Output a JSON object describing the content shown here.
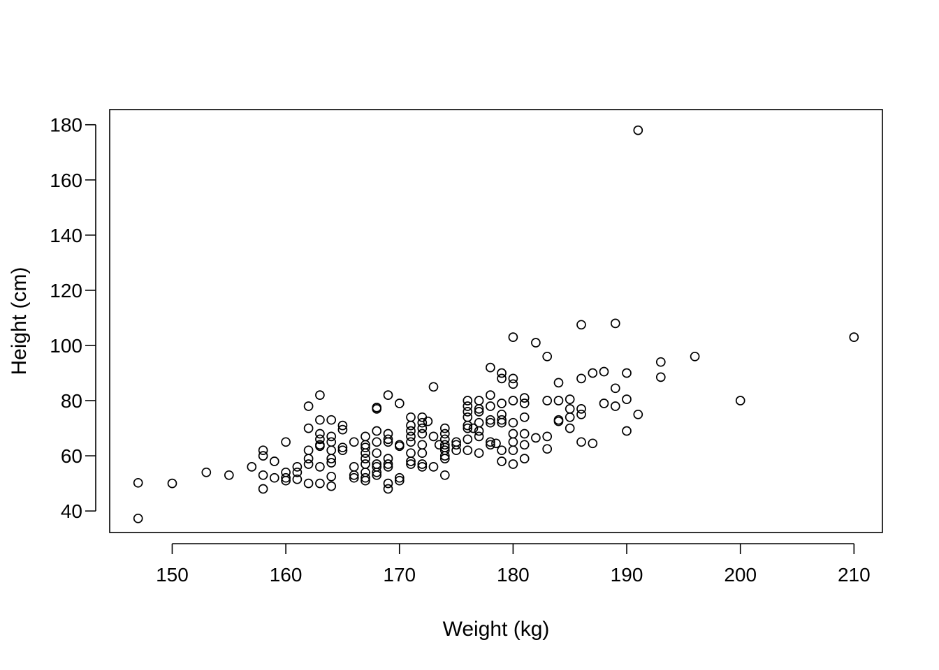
{
  "chart_data": {
    "type": "scatter",
    "title": "",
    "xlabel": "Weight (kg)",
    "ylabel": "Height (cm)",
    "xlim": [
      144.5,
      212.5
    ],
    "ylim": [
      32.2,
      185.5
    ],
    "xticks": [
      150,
      160,
      170,
      180,
      190,
      200,
      210
    ],
    "yticks": [
      40,
      60,
      80,
      100,
      120,
      140,
      160,
      180
    ],
    "grid": false,
    "legend": "none",
    "marker": "open-circle",
    "colors": {
      "points": "#000000",
      "axes": "#000000",
      "background": "#ffffff"
    },
    "points": [
      [
        147,
        50.2
      ],
      [
        147,
        37.3
      ],
      [
        150,
        50
      ],
      [
        153,
        54
      ],
      [
        155,
        53
      ],
      [
        157,
        56
      ],
      [
        158,
        62
      ],
      [
        158,
        60
      ],
      [
        158,
        53
      ],
      [
        158,
        48
      ],
      [
        159,
        58
      ],
      [
        159,
        52
      ],
      [
        160,
        65
      ],
      [
        160,
        54
      ],
      [
        160,
        52
      ],
      [
        160,
        51
      ],
      [
        161,
        56
      ],
      [
        161,
        54
      ],
      [
        161,
        51.5
      ],
      [
        162,
        78
      ],
      [
        162,
        70
      ],
      [
        162,
        62
      ],
      [
        162,
        59
      ],
      [
        162,
        57
      ],
      [
        162,
        50
      ],
      [
        163,
        82
      ],
      [
        163,
        73
      ],
      [
        163,
        68
      ],
      [
        163,
        66
      ],
      [
        163,
        64
      ],
      [
        163,
        63.5
      ],
      [
        163,
        56
      ],
      [
        163,
        50
      ],
      [
        164,
        73
      ],
      [
        164,
        67
      ],
      [
        164,
        65
      ],
      [
        164,
        62
      ],
      [
        164,
        59
      ],
      [
        164,
        57.5
      ],
      [
        164,
        52.5
      ],
      [
        164,
        49
      ],
      [
        165,
        71
      ],
      [
        165,
        69.5
      ],
      [
        165,
        63
      ],
      [
        165,
        62
      ],
      [
        166,
        65
      ],
      [
        166,
        56
      ],
      [
        166,
        53
      ],
      [
        166,
        52
      ],
      [
        167,
        67
      ],
      [
        167,
        64
      ],
      [
        167,
        63
      ],
      [
        167,
        61
      ],
      [
        167,
        59
      ],
      [
        167,
        57
      ],
      [
        167,
        54
      ],
      [
        167,
        52
      ],
      [
        167,
        51
      ],
      [
        168,
        77
      ],
      [
        168,
        77.5
      ],
      [
        168,
        69
      ],
      [
        168,
        65
      ],
      [
        168,
        61
      ],
      [
        168,
        57
      ],
      [
        168,
        56
      ],
      [
        168,
        54
      ],
      [
        168,
        53
      ],
      [
        169,
        82
      ],
      [
        169,
        68
      ],
      [
        169,
        66
      ],
      [
        169,
        65
      ],
      [
        169,
        59
      ],
      [
        169,
        57
      ],
      [
        169,
        56
      ],
      [
        169,
        50
      ],
      [
        169,
        48
      ],
      [
        170,
        79
      ],
      [
        170,
        64
      ],
      [
        170,
        63.5
      ],
      [
        170,
        52
      ],
      [
        170,
        51
      ],
      [
        171,
        74
      ],
      [
        171,
        71
      ],
      [
        171,
        69
      ],
      [
        171,
        67
      ],
      [
        171,
        65
      ],
      [
        171,
        61
      ],
      [
        171,
        58
      ],
      [
        171,
        57
      ],
      [
        172,
        74
      ],
      [
        172,
        72
      ],
      [
        172,
        70
      ],
      [
        172,
        68
      ],
      [
        172,
        64
      ],
      [
        172,
        61
      ],
      [
        172,
        57
      ],
      [
        172,
        56
      ],
      [
        172.5,
        72.5
      ],
      [
        173,
        85
      ],
      [
        173,
        67
      ],
      [
        173,
        56
      ],
      [
        173.5,
        64
      ],
      [
        174,
        70
      ],
      [
        174,
        68
      ],
      [
        174,
        66
      ],
      [
        174,
        64
      ],
      [
        174,
        63
      ],
      [
        174,
        62
      ],
      [
        174,
        60
      ],
      [
        174,
        59
      ],
      [
        174,
        53
      ],
      [
        175,
        65
      ],
      [
        175,
        64
      ],
      [
        175,
        62
      ],
      [
        176,
        80
      ],
      [
        176,
        78
      ],
      [
        176,
        76
      ],
      [
        176,
        74
      ],
      [
        176,
        71
      ],
      [
        176,
        70
      ],
      [
        176,
        66
      ],
      [
        176,
        62
      ],
      [
        176.5,
        70
      ],
      [
        177,
        80
      ],
      [
        177,
        77
      ],
      [
        177,
        76
      ],
      [
        177,
        72
      ],
      [
        177,
        69
      ],
      [
        177,
        67
      ],
      [
        177,
        61
      ],
      [
        178,
        92
      ],
      [
        178,
        82
      ],
      [
        178,
        78
      ],
      [
        178,
        73
      ],
      [
        178,
        72
      ],
      [
        178,
        65
      ],
      [
        178,
        64
      ],
      [
        178.5,
        64.5
      ],
      [
        179,
        90
      ],
      [
        179,
        88
      ],
      [
        179,
        79
      ],
      [
        179,
        75
      ],
      [
        179,
        73
      ],
      [
        179,
        72
      ],
      [
        179,
        62
      ],
      [
        179,
        58
      ],
      [
        180,
        103
      ],
      [
        180,
        88
      ],
      [
        180,
        86
      ],
      [
        180,
        80
      ],
      [
        180,
        72
      ],
      [
        180,
        68
      ],
      [
        180,
        65
      ],
      [
        180,
        62
      ],
      [
        180,
        57
      ],
      [
        181,
        81
      ],
      [
        181,
        79
      ],
      [
        181,
        74
      ],
      [
        181,
        68
      ],
      [
        181,
        64
      ],
      [
        181,
        59
      ],
      [
        182,
        101
      ],
      [
        182,
        66.5
      ],
      [
        183,
        96
      ],
      [
        183,
        80
      ],
      [
        183,
        67
      ],
      [
        183,
        62.5
      ],
      [
        184,
        86.5
      ],
      [
        184,
        80
      ],
      [
        184,
        73
      ],
      [
        184,
        72.5
      ],
      [
        185,
        80.5
      ],
      [
        185,
        77
      ],
      [
        185,
        74
      ],
      [
        185,
        70
      ],
      [
        186,
        107.5
      ],
      [
        186,
        88
      ],
      [
        186,
        77
      ],
      [
        186,
        75
      ],
      [
        186,
        65
      ],
      [
        187,
        90
      ],
      [
        187,
        64.5
      ],
      [
        188,
        90.5
      ],
      [
        188,
        79
      ],
      [
        189,
        108
      ],
      [
        189,
        84.5
      ],
      [
        189,
        78
      ],
      [
        190,
        90
      ],
      [
        190,
        80.5
      ],
      [
        190,
        69
      ],
      [
        191,
        178
      ],
      [
        191,
        75
      ],
      [
        193,
        94
      ],
      [
        193,
        88.5
      ],
      [
        196,
        96
      ],
      [
        200,
        80
      ],
      [
        210,
        103
      ]
    ]
  }
}
